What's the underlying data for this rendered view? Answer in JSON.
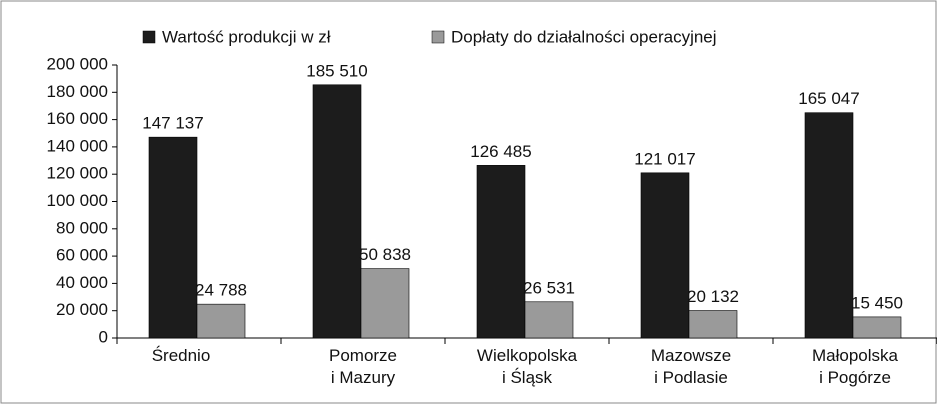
{
  "chart_data": {
    "type": "bar",
    "categories": [
      "Średnio",
      "Pomorze\ni Mazury",
      "Wielkopolska\ni Śląsk",
      "Mazowsze\ni Podlasie",
      "Małopolska\ni Pogórze"
    ],
    "series": [
      {
        "name": "Wartość produkcji w zł",
        "color": "#1c1c1c",
        "values": [
          147137,
          185510,
          126485,
          121017,
          165047
        ],
        "value_labels": [
          "147 137",
          "185 510",
          "126 485",
          "121 017",
          "165 047"
        ]
      },
      {
        "name": "Dopłaty do działalności operacyjnej",
        "color": "#9a9a9a",
        "values": [
          24788,
          50838,
          26531,
          20132,
          15450
        ],
        "value_labels": [
          "24 788",
          "50 838",
          "26 531",
          "20 132",
          "15 450"
        ]
      }
    ],
    "ylim": [
      0,
      200000
    ],
    "yticks": [
      0,
      {
        "value": 20000,
        "label": "20 000"
      },
      {
        "value": 40000,
        "label": "40 000"
      },
      {
        "value": 60000,
        "label": "60 000"
      },
      {
        "value": 80000,
        "label": "80 000"
      },
      {
        "value": 100000,
        "label": "100 000"
      },
      {
        "value": 120000,
        "label": "120 000"
      },
      {
        "value": 140000,
        "label": "140 000"
      },
      {
        "value": 160000,
        "label": "160 000"
      },
      {
        "value": 180000,
        "label": "180 000"
      },
      {
        "value": 200000,
        "label": "200 000"
      }
    ],
    "legend": "top"
  }
}
